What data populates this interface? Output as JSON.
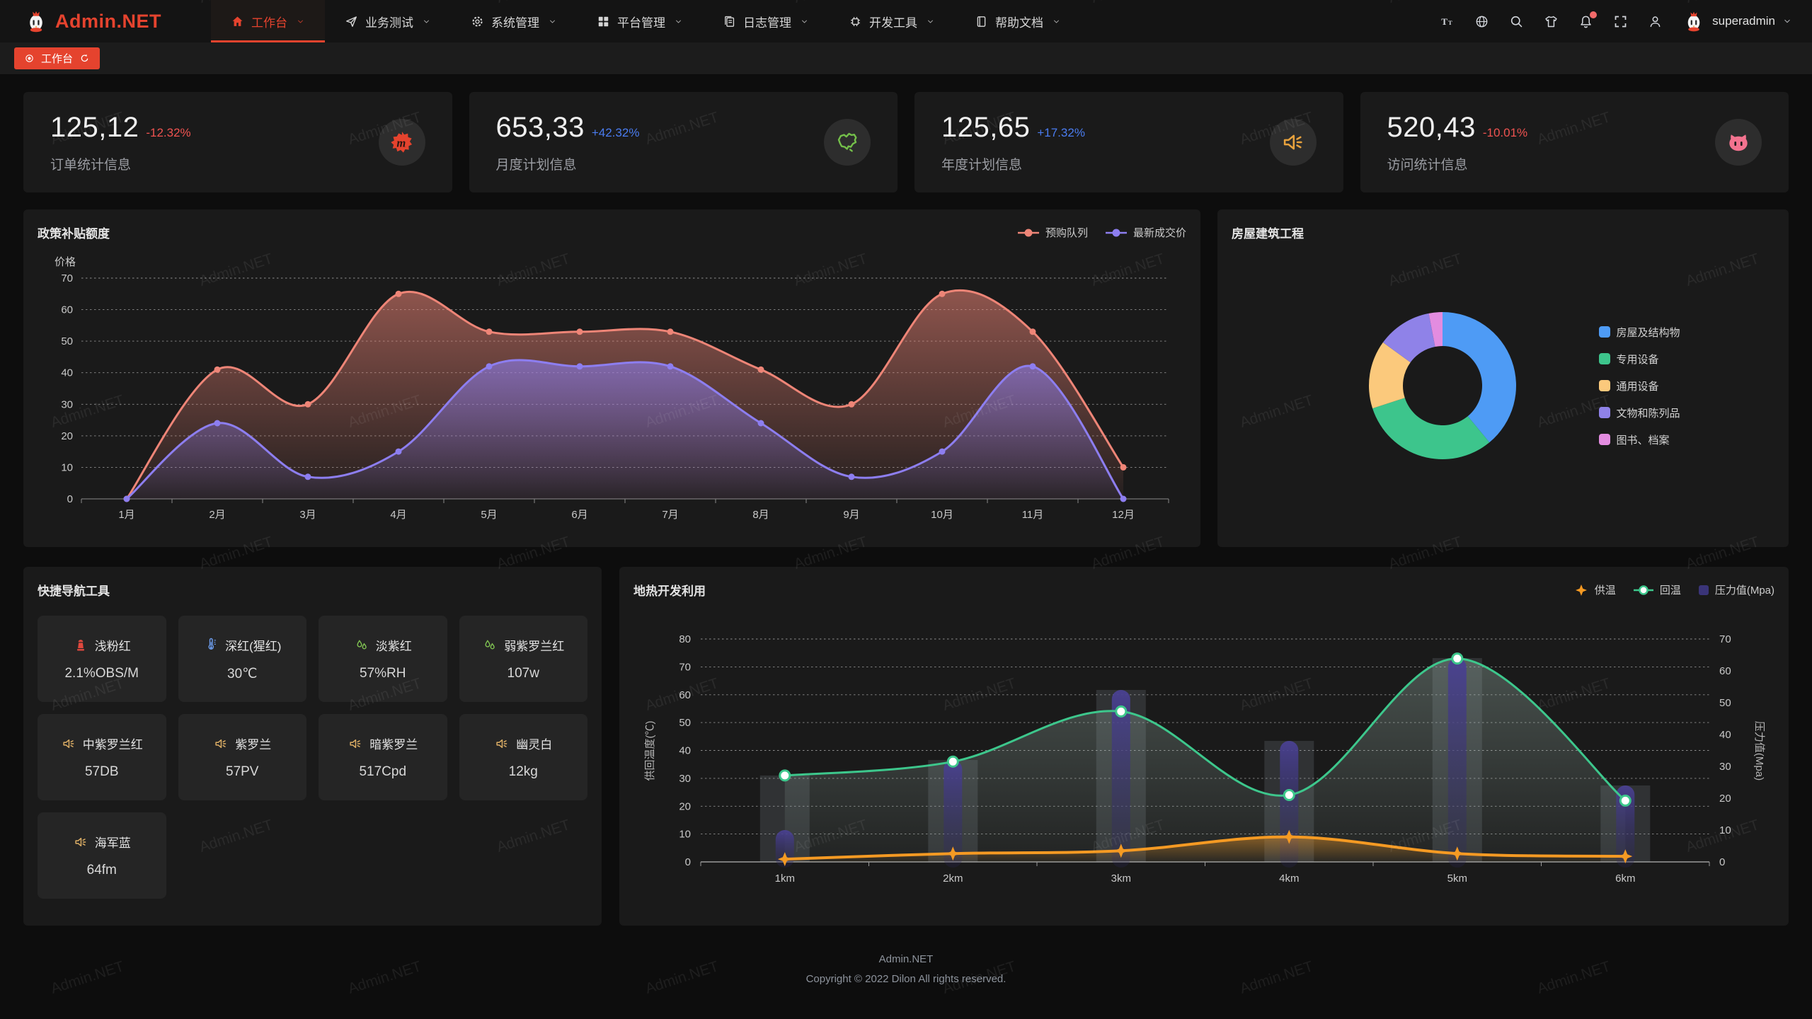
{
  "app": {
    "name": "Admin.NET",
    "accent": "#e5432e"
  },
  "navbar": {
    "menu": [
      {
        "label": "工作台",
        "icon": "home-icon",
        "active": true
      },
      {
        "label": "业务测试",
        "icon": "send-icon",
        "active": false
      },
      {
        "label": "系统管理",
        "icon": "gear-icon",
        "active": false
      },
      {
        "label": "平台管理",
        "icon": "grid-icon",
        "active": false
      },
      {
        "label": "日志管理",
        "icon": "log-icon",
        "active": false
      },
      {
        "label": "开发工具",
        "icon": "chip-icon",
        "active": false
      },
      {
        "label": "帮助文档",
        "icon": "book-icon",
        "active": false
      }
    ],
    "tools": [
      {
        "icon": "font-size-icon",
        "badge": false
      },
      {
        "icon": "language-icon",
        "badge": false
      },
      {
        "icon": "search-icon",
        "badge": false
      },
      {
        "icon": "theme-icon",
        "badge": false
      },
      {
        "icon": "bell-icon",
        "badge": true
      },
      {
        "icon": "fullscreen-icon",
        "badge": false
      },
      {
        "icon": "user-icon",
        "badge": false
      }
    ],
    "user": {
      "name": "superadmin"
    }
  },
  "tabbar": {
    "tabs": [
      {
        "label": "工作台",
        "active": true
      }
    ]
  },
  "stat_cards": [
    {
      "value": "125,12",
      "delta": "-12.32%",
      "delta_color": "#ef5350",
      "label": "订单统计信息",
      "icon": "meetup-icon",
      "icon_color": "#e5432e"
    },
    {
      "value": "653,33",
      "delta": "+42.32%",
      "delta_color": "#4a7cf0",
      "label": "月度计划信息",
      "icon": "china-map-icon",
      "icon_color": "#74c04a"
    },
    {
      "value": "125,65",
      "delta": "+17.32%",
      "delta_color": "#4a7cf0",
      "label": "年度计划信息",
      "icon": "volume-icon",
      "icon_color": "#e8a23d"
    },
    {
      "value": "520,43",
      "delta": "-10.01%",
      "delta_color": "#ef5350",
      "label": "访问统计信息",
      "icon": "cat-icon",
      "icon_color": "#f3738f"
    }
  ],
  "chart_data": [
    {
      "type": "line",
      "title": "政策补贴额度",
      "ylabel": "价格",
      "categories": [
        "1月",
        "2月",
        "3月",
        "4月",
        "5月",
        "6月",
        "7月",
        "8月",
        "9月",
        "10月",
        "11月",
        "12月"
      ],
      "ylim": [
        0,
        70
      ],
      "grid": "dashed",
      "legend_position": "top-right",
      "series": [
        {
          "name": "预购队列",
          "color": "#ee8577",
          "values": [
            0,
            41,
            30,
            65,
            53,
            53,
            53,
            41,
            30,
            65,
            53,
            10
          ]
        },
        {
          "name": "最新成交价",
          "color": "#8d7ef0",
          "values": [
            0,
            24,
            7,
            15,
            42,
            42,
            42,
            24,
            7,
            15,
            42,
            0
          ]
        }
      ]
    },
    {
      "type": "pie",
      "title": "房屋建筑工程",
      "legend_position": "right",
      "segments": [
        {
          "label": "房屋及结构物",
          "value": 39,
          "color": "#4e9bf5"
        },
        {
          "label": "专用设备",
          "value": 31,
          "color": "#3dc58c"
        },
        {
          "label": "通用设备",
          "value": 15,
          "color": "#fbc97c"
        },
        {
          "label": "文物和陈列品",
          "value": 12,
          "color": "#8f82e8"
        },
        {
          "label": "图书、档案",
          "value": 3,
          "color": "#e38ce0"
        }
      ]
    },
    {
      "type": "line+bar",
      "title": "地热开发利用",
      "categories": [
        "1km",
        "2km",
        "3km",
        "4km",
        "5km",
        "6km"
      ],
      "ylabel_left": "供回温度(℃)",
      "ylabel_right": "压力值(Mpa)",
      "ylim_left": [
        0,
        80
      ],
      "ylim_right": [
        0,
        70
      ],
      "grid": "dashed",
      "legend_position": "top-right",
      "series": [
        {
          "name": "供温",
          "type": "line",
          "axis": "left",
          "color": "#f59a23",
          "marker": "star",
          "values": [
            1,
            3,
            4,
            9,
            3,
            2
          ]
        },
        {
          "name": "回温",
          "type": "line",
          "axis": "left",
          "color": "#3dc78c",
          "marker": "circle",
          "values": [
            31,
            36,
            54,
            24,
            73,
            22
          ]
        },
        {
          "name": "压力值(Mpa)",
          "type": "bar",
          "axis": "right",
          "color": "#3a3478",
          "values": [
            10,
            32,
            54,
            38,
            64,
            24
          ]
        }
      ]
    }
  ],
  "quick_nav": {
    "title": "快捷导航工具",
    "items": [
      {
        "icon": "hydrant-icon",
        "icon_color": "#e0483e",
        "label": "浅粉红",
        "value": "2.1%OBS/M"
      },
      {
        "icon": "thermometer-icon",
        "icon_color": "#6b9ae8",
        "label": "深红(猩红)",
        "value": "30℃"
      },
      {
        "icon": "droplets-icon",
        "icon_color": "#82c653",
        "label": "淡紫红",
        "value": "57%RH"
      },
      {
        "icon": "droplets-icon",
        "icon_color": "#82c653",
        "label": "弱紫罗兰红",
        "value": "107w"
      },
      {
        "icon": "speaker-icon",
        "icon_color": "#dfb066",
        "label": "中紫罗兰红",
        "value": "57DB"
      },
      {
        "icon": "speaker-icon",
        "icon_color": "#dfb066",
        "label": "紫罗兰",
        "value": "57PV"
      },
      {
        "icon": "speaker-icon",
        "icon_color": "#dfb066",
        "label": "暗紫罗兰",
        "value": "517Cpd"
      },
      {
        "icon": "speaker-icon",
        "icon_color": "#dfb066",
        "label": "幽灵白",
        "value": "12kg"
      },
      {
        "icon": "speaker-icon",
        "icon_color": "#dfb066",
        "label": "海军蓝",
        "value": "64fm"
      }
    ]
  },
  "footer": {
    "line1": "Admin.NET",
    "line2": "Copyright © 2022 Dilon All rights reserved."
  },
  "watermark": {
    "text": "Admin.NET"
  }
}
